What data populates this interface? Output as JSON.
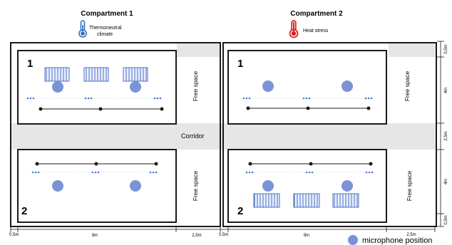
{
  "compartments": [
    {
      "title": "Compartment 1",
      "climate": "Thermoneutral climate",
      "climate_lines": [
        "Thermoneutral",
        "climate"
      ],
      "thermometer_color": "#2f6fc4"
    },
    {
      "title": "Compartment 2",
      "climate": "Heat stress",
      "climate_lines": [
        "Heat stress"
      ],
      "thermometer_color": "#e02020"
    }
  ],
  "pens": {
    "top_label": "1",
    "bottom_label": "2"
  },
  "free_space_label": "Free space",
  "corridor_label": "Corridor",
  "dimensions": {
    "bottom": [
      "0,5m",
      "9m",
      "2,5m",
      "0,5m",
      "9m",
      "2,5m"
    ],
    "right": [
      "0,5m",
      "4m",
      "2,5m",
      "4m",
      "0,5m"
    ]
  },
  "legend": {
    "label": "microphone position"
  },
  "colors": {
    "microphone": "#7b93d6",
    "feeder_stroke": "#4d6fc0",
    "feeder_fill": "#e9efff",
    "blue_dots": "#4d7ad9",
    "corridor_fill": "#e6e6e6",
    "frame": "#1a1a1a"
  }
}
